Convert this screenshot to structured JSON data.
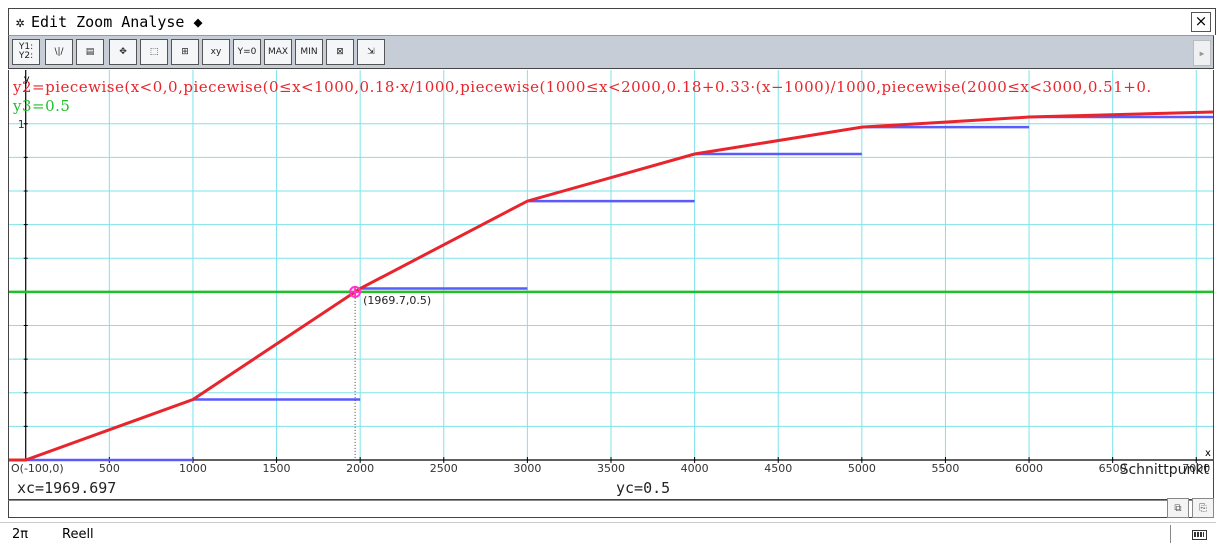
{
  "menubar": {
    "gear_icon": "gear-icon",
    "items": [
      "Edit",
      "Zoom",
      "Analyse",
      "◆"
    ],
    "close_label": "×"
  },
  "toolbar": {
    "buttons": [
      {
        "name": "graph-editor-button",
        "label": "Y1:\nY2:"
      },
      {
        "name": "draw-graph-button",
        "label": "\\|/"
      },
      {
        "name": "table-button",
        "label": "▤"
      },
      {
        "name": "pan-button",
        "label": "✥"
      },
      {
        "name": "zoom-box-button",
        "label": "⬚"
      },
      {
        "name": "zoom-in-out-button",
        "label": "⊞"
      },
      {
        "name": "trace-button",
        "label": "xy"
      },
      {
        "name": "root-button",
        "label": "Y=0"
      },
      {
        "name": "max-button",
        "label": "MAX"
      },
      {
        "name": "min-button",
        "label": "MIN"
      },
      {
        "name": "zoom-auto-button",
        "label": "⊠"
      },
      {
        "name": "zoom-fit-button",
        "label": "⇲"
      }
    ]
  },
  "equations": {
    "y2": "y2=piecewise(x<0,0,piecewise(0≤x<1000,0.18·x/1000,piecewise(1000≤x<2000,0.18+0.33·(x−1000)/1000,piecewise(2000≤x<3000,0.51+0.",
    "y3": "y3=0.5"
  },
  "axes": {
    "x_ticks": [
      "500",
      "1000",
      "1500",
      "2000",
      "2500",
      "3000",
      "3500",
      "4000",
      "4500",
      "5000",
      "5500",
      "6000",
      "6500",
      "7000"
    ],
    "origin_label": "(-100,0)",
    "origin_marker": "O",
    "x_axis_label": "x",
    "y_axis_label": "y",
    "y_tick_label": "1"
  },
  "chart_data": {
    "type": "line",
    "xlim": [
      -100,
      7100
    ],
    "ylim": [
      0,
      1.035
    ],
    "grid": true,
    "series": [
      {
        "name": "y2",
        "color": "#e8252c",
        "x": [
          -100,
          0,
          1000,
          2000,
          3000,
          4000,
          5000,
          6000,
          7100
        ],
        "y": [
          0,
          0,
          0.18,
          0.51,
          0.77,
          0.91,
          0.99,
          1.02,
          1.035
        ]
      },
      {
        "name": "y3",
        "color": "#1fbf2a",
        "x": [
          -100,
          7100
        ],
        "y": [
          0.5,
          0.5
        ]
      }
    ],
    "steps": {
      "color": "#5a5aff",
      "segments": [
        {
          "x0": 0,
          "x1": 1000,
          "y": 0
        },
        {
          "x0": 1000,
          "x1": 2000,
          "y": 0.18
        },
        {
          "x0": 2000,
          "x1": 3000,
          "y": 0.51
        },
        {
          "x0": 3000,
          "x1": 4000,
          "y": 0.77
        },
        {
          "x0": 4000,
          "x1": 5000,
          "y": 0.91
        },
        {
          "x0": 5000,
          "x1": 6000,
          "y": 0.99
        },
        {
          "x0": 6000,
          "x1": 7100,
          "y": 1.02
        }
      ]
    },
    "intersection": {
      "x": 1969.7,
      "y": 0.5,
      "label": "(1969.7,0.5)"
    }
  },
  "readout": {
    "xc": "xc=1969.697",
    "yc": "yc=0.5",
    "mode": "Schnittpunkt"
  },
  "statusbar": {
    "angle": "2π",
    "number_mode": "Reell"
  }
}
